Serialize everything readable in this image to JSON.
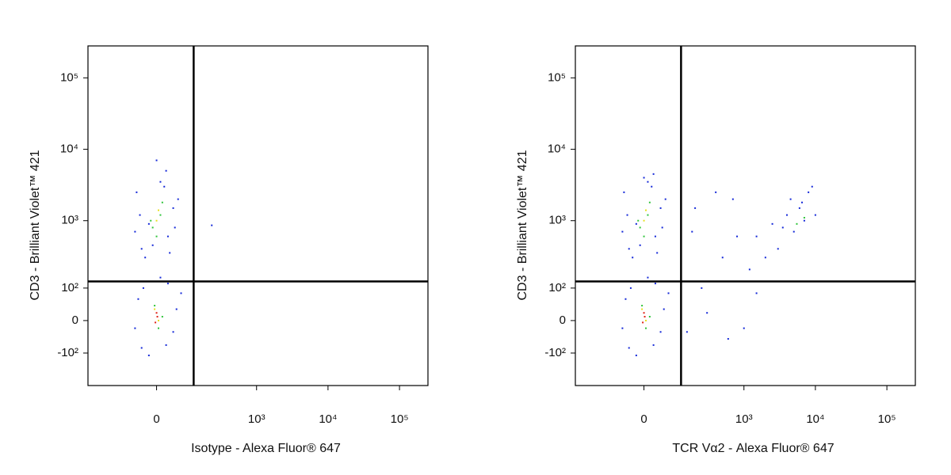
{
  "chart_data": [
    {
      "type": "scatter",
      "xlabel": "Isotype - Alexa Fluor® 647",
      "ylabel": "CD3 - Brilliant Violet™ 421",
      "xscale": "biexponential",
      "yscale": "biexponential",
      "xlim": [
        -360,
        250000
      ],
      "ylim": [
        -320,
        280000
      ],
      "xticks": [
        0,
        {
          "value": 1000,
          "label": "10³"
        },
        {
          "value": 10000,
          "label": "10⁴"
        },
        {
          "value": 100000,
          "label": "10⁵"
        }
      ],
      "yticks": [
        {
          "value": -100,
          "label": "-10²"
        },
        0,
        {
          "value": 100,
          "label": "10²"
        },
        {
          "value": 1000,
          "label": "10³"
        },
        {
          "value": 10000,
          "label": "10⁴"
        },
        {
          "value": 100000,
          "label": "10⁵"
        }
      ],
      "gates": {
        "x": 120,
        "y": 130
      },
      "series": [
        {
          "color": "#1428d8",
          "x": [
            -40,
            30,
            -20,
            45,
            -55,
            10,
            25,
            -30,
            50,
            -45,
            0,
            60,
            -10,
            35,
            -60,
            20,
            -40,
            30,
            -50,
            45,
            -20,
            55,
            10,
            -60,
            25,
            -35,
            70,
            230
          ],
          "y": [
            400,
            600,
            900,
            1500,
            2500,
            3500,
            5000,
            300,
            800,
            1200,
            7000,
            2000,
            450,
            350,
            700,
            3000,
            -80,
            120,
            60,
            -30,
            -110,
            30,
            150,
            -20,
            -70,
            100,
            80,
            860
          ]
        },
        {
          "color": "#2fc43a",
          "x": [
            -10,
            10,
            0,
            15,
            -15,
            5,
            -5,
            15
          ],
          "y": [
            800,
            1200,
            600,
            1800,
            1000,
            -20,
            40,
            10
          ]
        },
        {
          "color": "#e8e020",
          "x": [
            0,
            5,
            -5,
            5
          ],
          "y": [
            1000,
            1400,
            30,
            0
          ]
        },
        {
          "color": "#e02418",
          "x": [
            0,
            -3,
            2
          ],
          "y": [
            20,
            -5,
            10
          ]
        }
      ]
    },
    {
      "type": "scatter",
      "xlabel": "TCR Vα2 - Alexa Fluor® 647",
      "ylabel": "CD3 - Brilliant Violet™ 421",
      "xscale": "biexponential",
      "yscale": "biexponential",
      "xlim": [
        -360,
        250000
      ],
      "ylim": [
        -320,
        280000
      ],
      "xticks": [
        0,
        {
          "value": 1000,
          "label": "10³"
        },
        {
          "value": 10000,
          "label": "10⁴"
        },
        {
          "value": 100000,
          "label": "10⁵"
        }
      ],
      "yticks": [
        {
          "value": -100,
          "label": "-10²"
        },
        0,
        {
          "value": 100,
          "label": "10²"
        },
        {
          "value": 1000,
          "label": "10³"
        },
        {
          "value": 10000,
          "label": "10⁴"
        },
        {
          "value": 100000,
          "label": "10⁵"
        }
      ],
      "gates": {
        "x": 120,
        "y": 130
      },
      "series": [
        {
          "color": "#1428d8",
          "x": [
            -40,
            30,
            -20,
            45,
            -55,
            10,
            25,
            -30,
            50,
            -45,
            0,
            60,
            -10,
            35,
            -60,
            20,
            -40,
            30,
            -50,
            45,
            -20,
            55,
            10,
            -60,
            25,
            -35,
            70,
            1500,
            2500,
            4000,
            6000,
            8000,
            3000,
            5000,
            7000,
            9000,
            2000,
            6500,
            4500,
            3500,
            10000,
            1200,
            150,
            300,
            600,
            200,
            400,
            800,
            1000,
            250,
            500,
            1500,
            180,
            700
          ],
          "y": [
            400,
            600,
            900,
            1500,
            2500,
            3500,
            4500,
            300,
            800,
            1200,
            4000,
            2000,
            450,
            350,
            700,
            3000,
            -80,
            120,
            60,
            -30,
            -110,
            30,
            150,
            -20,
            -70,
            100,
            80,
            600,
            900,
            1200,
            1500,
            2500,
            400,
            700,
            1000,
            3000,
            300,
            1800,
            2000,
            800,
            1200,
            200,
            -30,
            20,
            -50,
            1500,
            2500,
            600,
            -20,
            100,
            300,
            80,
            700,
            2000
          ]
        },
        {
          "color": "#2fc43a",
          "x": [
            -10,
            10,
            0,
            15,
            -15,
            5,
            -5,
            15,
            7000,
            5500
          ],
          "y": [
            800,
            1200,
            600,
            1800,
            1000,
            -20,
            40,
            10,
            1100,
            900
          ]
        },
        {
          "color": "#e8e020",
          "x": [
            0,
            5,
            -5,
            5
          ],
          "y": [
            1000,
            1400,
            30,
            0
          ]
        },
        {
          "color": "#e02418",
          "x": [
            0,
            -3,
            2
          ],
          "y": [
            20,
            -5,
            10
          ]
        }
      ]
    }
  ]
}
